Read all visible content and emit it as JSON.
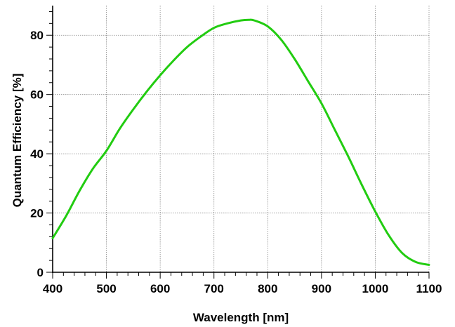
{
  "chart_data": {
    "type": "line",
    "title": "",
    "xlabel": "Wavelength [nm]",
    "ylabel": "Quantum Efficiency [%]",
    "xlim": [
      400,
      1100
    ],
    "ylim": [
      0,
      90
    ],
    "x_ticks": [
      400,
      500,
      600,
      700,
      800,
      900,
      1000,
      1100
    ],
    "y_ticks": [
      0,
      20,
      40,
      60,
      80
    ],
    "grid": true,
    "legend": "none",
    "line_color": "#22cc11",
    "series": [
      {
        "x": [
          400,
          425,
          450,
          475,
          500,
          525,
          550,
          575,
          600,
          625,
          650,
          675,
          700,
          725,
          750,
          765,
          775,
          800,
          825,
          850,
          875,
          900,
          925,
          950,
          975,
          1000,
          1025,
          1050,
          1075,
          1100
        ],
        "y": [
          11.5,
          19,
          27.5,
          35,
          41,
          48.5,
          55,
          61,
          66.5,
          71.5,
          76,
          79.5,
          82.5,
          84,
          85,
          85.2,
          85,
          83,
          78.5,
          72,
          64.5,
          57,
          48,
          39,
          29.5,
          20.5,
          12.5,
          6.5,
          3.5,
          2.5
        ]
      }
    ]
  }
}
